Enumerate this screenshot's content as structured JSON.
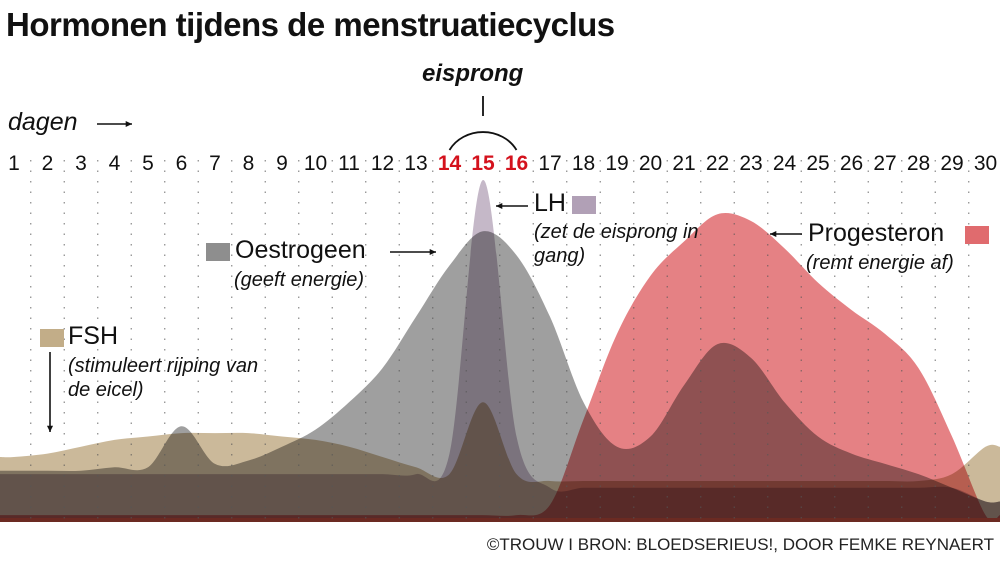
{
  "chart_data": {
    "type": "area",
    "title": "Hormonen tijdens de menstruatiecyclus",
    "xlabel": "dagen",
    "x": [
      1,
      2,
      3,
      4,
      5,
      6,
      7,
      8,
      9,
      10,
      11,
      12,
      13,
      14,
      15,
      16,
      17,
      18,
      19,
      20,
      21,
      22,
      23,
      24,
      25,
      26,
      27,
      28,
      29,
      30
    ],
    "highlight_days": [
      14,
      15,
      16
    ],
    "annotation": "eisprong",
    "ylim": [
      0,
      100
    ],
    "series": [
      {
        "name": "FSH",
        "note": "(stimuleert rijping van de eicel)",
        "color": "#c2ad88",
        "values": [
          19,
          20,
          22,
          24,
          25,
          26,
          26,
          26,
          25,
          24,
          22,
          19,
          16,
          14,
          35,
          14,
          12,
          12,
          12,
          12,
          12,
          12,
          12,
          12,
          12,
          12,
          12,
          12,
          14,
          22
        ]
      },
      {
        "name": "Oestrogeen",
        "note": "(geeft energie)",
        "color": "#8e8e8e",
        "values": [
          15,
          15,
          15,
          16,
          16,
          28,
          17,
          18,
          22,
          27,
          35,
          45,
          60,
          75,
          85,
          78,
          60,
          35,
          22,
          25,
          40,
          52,
          48,
          35,
          25,
          20,
          17,
          14,
          10,
          6
        ]
      },
      {
        "name": "LH",
        "note": "(zet de eisprong in gang)",
        "color": "#b1a0b6",
        "values": [
          14,
          14,
          14,
          14,
          14,
          14,
          14,
          14,
          14,
          14,
          14,
          14,
          14,
          20,
          100,
          25,
          10,
          10,
          10,
          10,
          10,
          10,
          10,
          10,
          10,
          10,
          10,
          10,
          10,
          6
        ]
      },
      {
        "name": "Progesteron",
        "note": "(remt energie af)",
        "color": "#e06b6e",
        "values": [
          2,
          2,
          2,
          2,
          2,
          2,
          2,
          2,
          2,
          2,
          2,
          2,
          2,
          2,
          2,
          2,
          5,
          30,
          55,
          72,
          82,
          90,
          88,
          80,
          70,
          62,
          55,
          45,
          25,
          2
        ]
      }
    ]
  },
  "credit": "©TROUW I BRON: BLOEDSERIEUS!, DOOR FEMKE REYNAERT"
}
